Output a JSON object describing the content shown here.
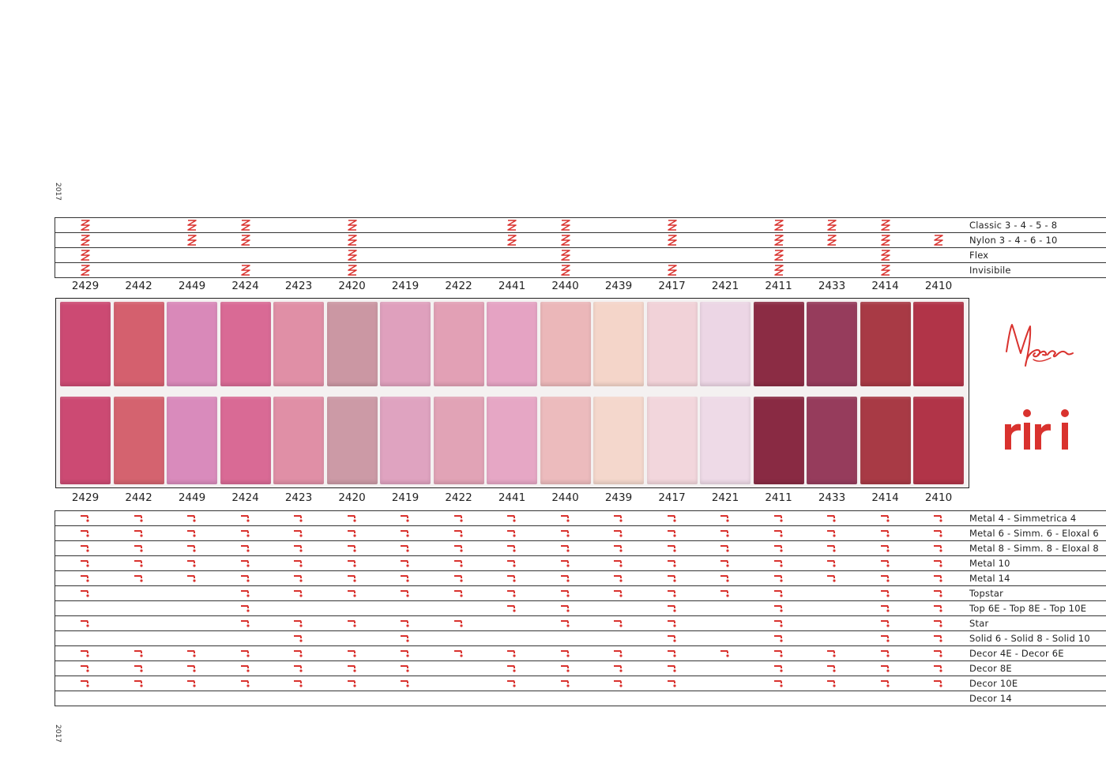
{
  "year_label": "2017",
  "codes": [
    "2429",
    "2442",
    "2449",
    "2424",
    "2423",
    "2420",
    "2419",
    "2422",
    "2441",
    "2440",
    "2439",
    "2417",
    "2421",
    "2411",
    "2433",
    "2414",
    "2410"
  ],
  "swatch_colors": {
    "top": [
      "#cc4a73",
      "#d4606e",
      "#d989b9",
      "#d96a95",
      "#e08fa6",
      "#cb97a3",
      "#dfa0bd",
      "#e2a0b5",
      "#e5a3c3",
      "#ebb7b9",
      "#f4d5c9",
      "#f1d2d8",
      "#ecd6e5",
      "#8b2c44",
      "#963c5c",
      "#a83a45",
      "#b13448"
    ],
    "bottom": [
      "#cc4a73",
      "#d4636f",
      "#d98bbc",
      "#d96a95",
      "#e08fa6",
      "#cc9aa6",
      "#dfa3c0",
      "#e1a3b6",
      "#e6a7c5",
      "#ecbbbd",
      "#f4d7cc",
      "#f2d6dc",
      "#eedae7",
      "#892a43",
      "#963c5c",
      "#a83a45",
      "#b13448"
    ]
  },
  "zipper_types": [
    {
      "label": "Classic 3 - 4 - 5 - 8",
      "available": [
        0,
        2,
        3,
        5,
        8,
        9,
        11,
        13,
        14,
        15
      ]
    },
    {
      "label": "Nylon 3 - 4 - 6 - 10",
      "available": [
        0,
        2,
        3,
        5,
        8,
        9,
        11,
        13,
        14,
        15,
        16
      ]
    },
    {
      "label": "Flex",
      "available": [
        0,
        5,
        9,
        13,
        15
      ]
    },
    {
      "label": "Invisibile",
      "available": [
        0,
        3,
        5,
        9,
        11,
        13,
        15
      ]
    }
  ],
  "metal_types": [
    {
      "label": "Metal 4 - Simmetrica 4",
      "available": [
        0,
        1,
        2,
        3,
        4,
        5,
        6,
        7,
        8,
        9,
        10,
        11,
        12,
        13,
        14,
        15,
        16
      ]
    },
    {
      "label": "Metal 6 - Simm. 6 - Eloxal 6",
      "available": [
        0,
        1,
        2,
        3,
        4,
        5,
        6,
        7,
        8,
        9,
        10,
        11,
        12,
        13,
        14,
        15,
        16
      ]
    },
    {
      "label": "Metal 8 - Simm. 8 - Eloxal 8",
      "available": [
        0,
        1,
        2,
        3,
        4,
        5,
        6,
        7,
        8,
        9,
        10,
        11,
        12,
        13,
        14,
        15,
        16
      ]
    },
    {
      "label": "Metal 10",
      "available": [
        0,
        1,
        2,
        3,
        4,
        5,
        6,
        7,
        8,
        9,
        10,
        11,
        12,
        13,
        14,
        15,
        16
      ]
    },
    {
      "label": "Metal 14",
      "available": [
        0,
        1,
        2,
        3,
        4,
        5,
        6,
        7,
        8,
        9,
        10,
        11,
        12,
        13,
        14,
        15,
        16
      ]
    },
    {
      "label": "Topstar",
      "available": [
        0,
        3,
        4,
        5,
        6,
        7,
        8,
        9,
        10,
        11,
        12,
        13,
        15,
        16
      ]
    },
    {
      "label": "Top 6E - Top 8E - Top 10E",
      "available": [
        3,
        8,
        9,
        11,
        13,
        15,
        16
      ]
    },
    {
      "label": "Star",
      "available": [
        0,
        3,
        4,
        5,
        6,
        7,
        9,
        10,
        11,
        13,
        15,
        16
      ]
    },
    {
      "label": "Solid 6 - Solid 8 - Solid 10",
      "available": [
        4,
        6,
        11,
        13,
        15,
        16
      ]
    },
    {
      "label": "Decor 4E - Decor 6E",
      "available": [
        0,
        1,
        2,
        3,
        4,
        5,
        6,
        7,
        8,
        9,
        10,
        11,
        12,
        13,
        14,
        15,
        16
      ]
    },
    {
      "label": "Decor 8E",
      "available": [
        0,
        1,
        2,
        3,
        4,
        5,
        6,
        8,
        9,
        10,
        11,
        13,
        14,
        15,
        16
      ]
    },
    {
      "label": "Decor 10E",
      "available": [
        0,
        1,
        2,
        3,
        4,
        5,
        6,
        8,
        9,
        10,
        11,
        13,
        14,
        15,
        16
      ]
    },
    {
      "label": "Decor 14",
      "available": []
    }
  ],
  "brand": {
    "script_logo": "Meras",
    "riri_logo": "riri",
    "accent_color": "#d9322e"
  },
  "icons": {
    "zip_mark": "zipper-zigzag-icon",
    "metal_mark": "metal-slider-icon"
  }
}
